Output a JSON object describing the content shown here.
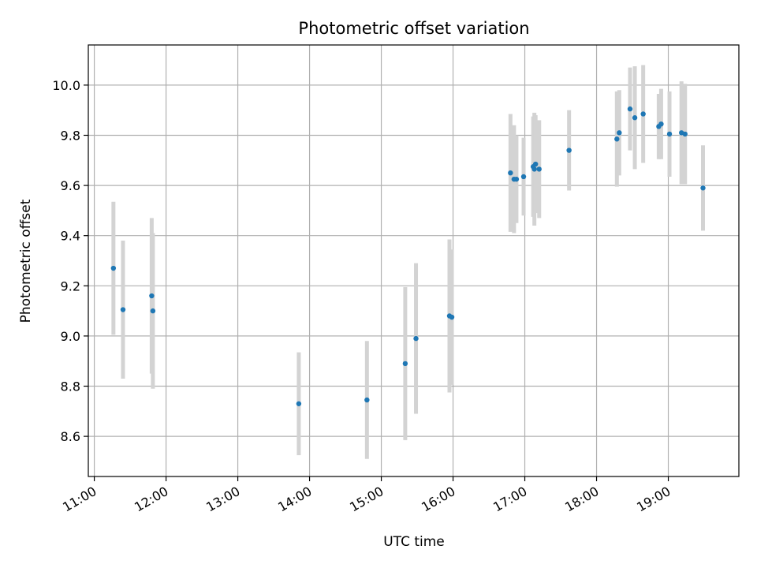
{
  "chart_data": {
    "type": "scatter",
    "title": "Photometric offset variation",
    "xlabel": "UTC time",
    "ylabel": "Photometric offset",
    "grid": true,
    "legend": "none",
    "colors": {
      "point": "#1f77b4",
      "errorbar": "#d3d3d3",
      "grid": "#b0b0b0"
    },
    "x_unit": "UTC hh:mm",
    "xlim": [
      "10:55",
      "19:59"
    ],
    "ylim": [
      8.44,
      10.16
    ],
    "xticks": [
      "11:00",
      "12:00",
      "13:00",
      "14:00",
      "15:00",
      "16:00",
      "17:00",
      "18:00",
      "19:00"
    ],
    "yticks": [
      "8.6",
      "8.8",
      "9.0",
      "9.2",
      "9.4",
      "9.6",
      "9.8",
      "10.0"
    ],
    "points": [
      {
        "x": "11:16",
        "y": 9.27,
        "err": 0.265
      },
      {
        "x": "11:24",
        "y": 9.105,
        "err": 0.275
      },
      {
        "x": "11:48",
        "y": 9.16,
        "err": 0.31
      },
      {
        "x": "11:49",
        "y": 9.1,
        "err": 0.31
      },
      {
        "x": "13:51",
        "y": 8.73,
        "err": 0.205
      },
      {
        "x": "14:48",
        "y": 8.745,
        "err": 0.235
      },
      {
        "x": "15:20",
        "y": 8.89,
        "err": 0.305
      },
      {
        "x": "15:29",
        "y": 8.99,
        "err": 0.3
      },
      {
        "x": "15:57",
        "y": 9.08,
        "err": 0.305
      },
      {
        "x": "15:59",
        "y": 9.075,
        "err": 0.27
      },
      {
        "x": "16:48",
        "y": 9.65,
        "err": 0.235
      },
      {
        "x": "16:51",
        "y": 9.625,
        "err": 0.215
      },
      {
        "x": "16:53",
        "y": 9.625,
        "err": 0.175
      },
      {
        "x": "16:59",
        "y": 9.635,
        "err": 0.155
      },
      {
        "x": "17:07",
        "y": 9.675,
        "err": 0.2
      },
      {
        "x": "17:08",
        "y": 9.665,
        "err": 0.225
      },
      {
        "x": "17:09",
        "y": 9.685,
        "err": 0.195
      },
      {
        "x": "17:12",
        "y": 9.665,
        "err": 0.195
      },
      {
        "x": "17:37",
        "y": 9.74,
        "err": 0.16
      },
      {
        "x": "18:17",
        "y": 9.785,
        "err": 0.19
      },
      {
        "x": "18:19",
        "y": 9.81,
        "err": 0.17
      },
      {
        "x": "18:28",
        "y": 9.905,
        "err": 0.165
      },
      {
        "x": "18:32",
        "y": 9.87,
        "err": 0.205
      },
      {
        "x": "18:39",
        "y": 9.885,
        "err": 0.195
      },
      {
        "x": "18:52",
        "y": 9.835,
        "err": 0.13
      },
      {
        "x": "18:54",
        "y": 9.845,
        "err": 0.14
      },
      {
        "x": "19:01",
        "y": 9.805,
        "err": 0.17
      },
      {
        "x": "19:11",
        "y": 9.81,
        "err": 0.205
      },
      {
        "x": "19:14",
        "y": 9.805,
        "err": 0.2
      },
      {
        "x": "19:29",
        "y": 9.59,
        "err": 0.17
      }
    ]
  }
}
